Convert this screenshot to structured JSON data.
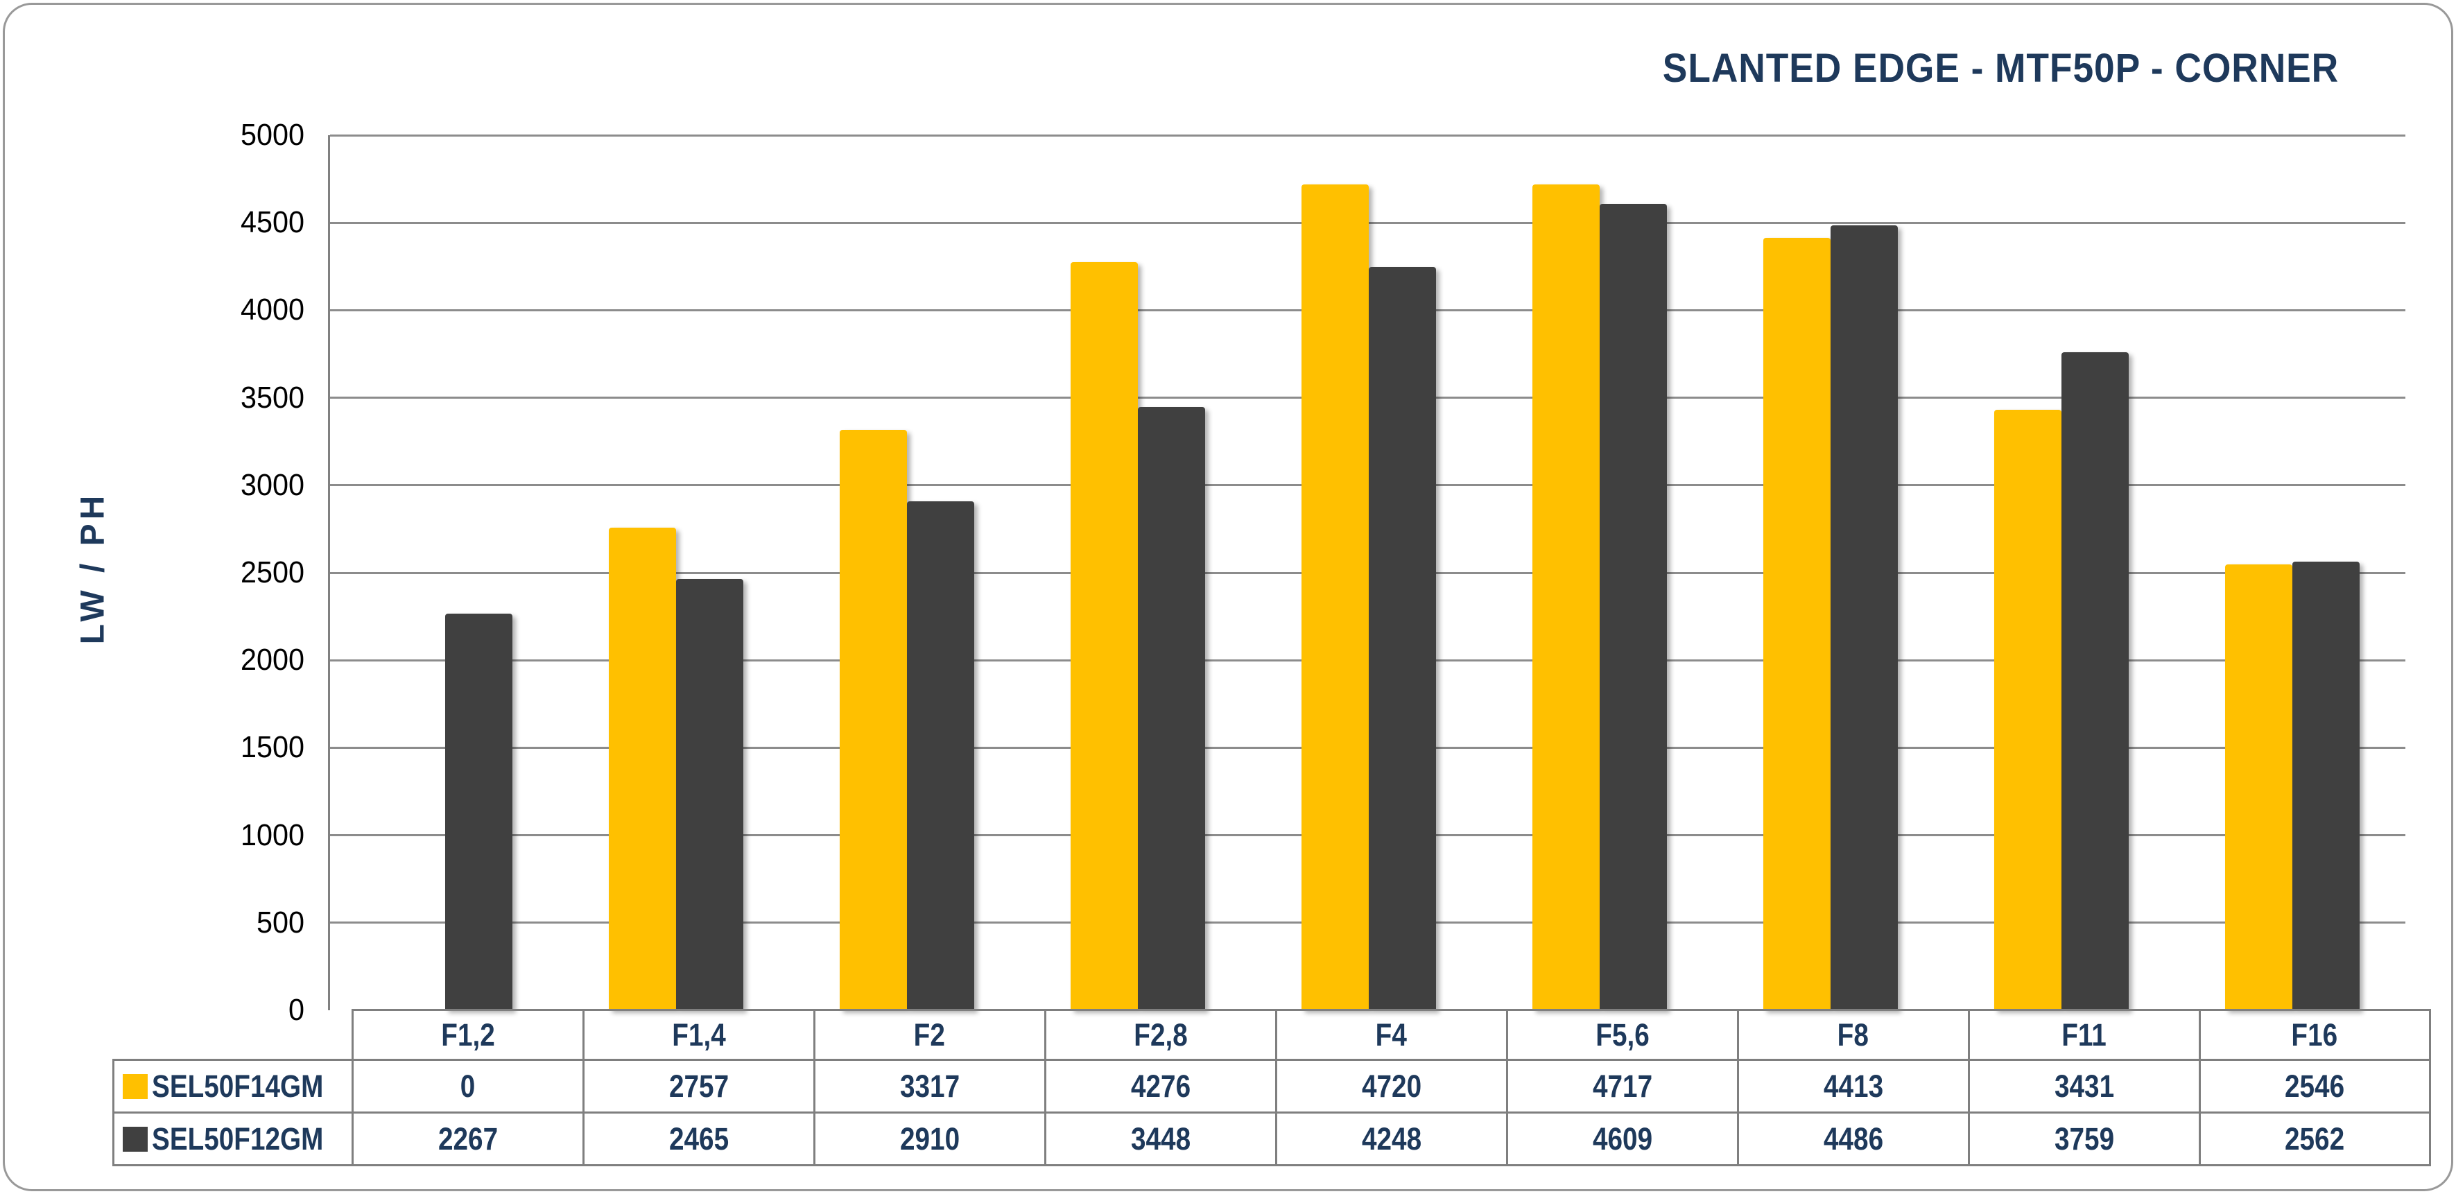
{
  "chart": {
    "title": "SLANTED EDGE - MTF50P - CORNER",
    "y_axis_title": "LW / PH"
  },
  "chart_data": {
    "type": "bar",
    "title": "SLANTED EDGE - MTF50P - CORNER",
    "xlabel": "",
    "ylabel": "LW / PH",
    "categories": [
      "F1,2",
      "F1,4",
      "F2",
      "F2,8",
      "F4",
      "F5,6",
      "F8",
      "F11",
      "F16"
    ],
    "series": [
      {
        "name": "SEL50F14GM",
        "color": "#FFC000",
        "values": [
          0,
          2757,
          3317,
          4276,
          4720,
          4717,
          4413,
          3431,
          2546
        ]
      },
      {
        "name": "SEL50F12GM",
        "color": "#404040",
        "values": [
          2267,
          2465,
          2910,
          3448,
          4248,
          4609,
          4486,
          3759,
          2562
        ]
      }
    ],
    "ylim": [
      0,
      5000
    ],
    "ytick_step": 500,
    "grid": true,
    "legend_position": "table-left",
    "data_table_shown": true
  },
  "colors": {
    "series1": "#FFC000",
    "series2": "#404040",
    "title_text": "#1E395B",
    "table_text": "#1E395B",
    "axis_tick_text": "#000000",
    "gridline": "#8C8C8C",
    "table_border": "#7F7F7F",
    "card_border": "#999999",
    "background": "#FFFFFF"
  }
}
